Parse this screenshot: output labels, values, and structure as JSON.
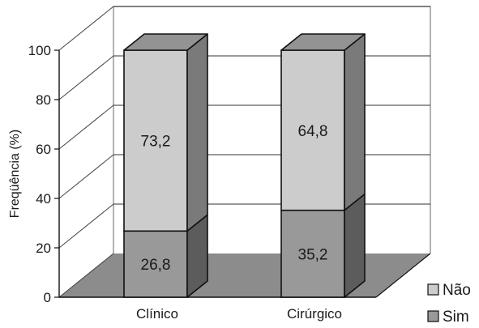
{
  "chart_data": {
    "type": "bar",
    "stacked": true,
    "three_d": true,
    "categories": [
      "Clínico",
      "Cirúrgico"
    ],
    "series": [
      {
        "name": "Sim",
        "values": [
          26.8,
          35.2
        ],
        "labels": [
          "26,8",
          "35,2"
        ],
        "color": "#999999"
      },
      {
        "name": "Não",
        "values": [
          73.2,
          64.8
        ],
        "labels": [
          "73,2",
          "64,8"
        ],
        "color": "#cccccc"
      }
    ],
    "ylabel": "Freqüência (%)",
    "xlabel": "",
    "ylim": [
      0,
      100
    ],
    "yticks": [
      0,
      20,
      40,
      60,
      80,
      100
    ],
    "ytick_labels": [
      "0",
      "20",
      "40",
      "60",
      "80",
      "100"
    ],
    "grid": true,
    "legend": {
      "placement": "bottom-right",
      "entries": [
        "Não",
        "Sim"
      ]
    },
    "colors": {
      "floor": "#8c8c8c",
      "wall_line": "#a0a0a0",
      "outline": "#111111"
    }
  }
}
